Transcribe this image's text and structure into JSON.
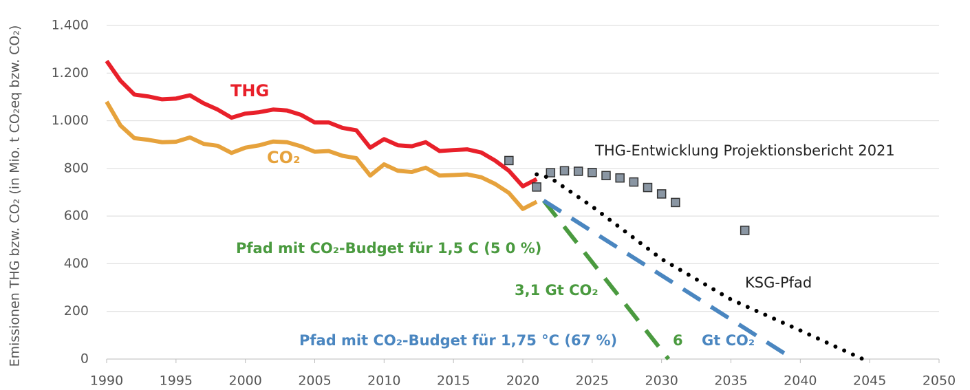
{
  "chart_data": {
    "type": "line",
    "ylabel": "Emissionen THG bzw. CO₂ (in Mio. t CO₂eq bzw. CO₂)",
    "xlim": [
      1990,
      2050
    ],
    "xticks": [
      1990,
      1995,
      2000,
      2005,
      2010,
      2015,
      2020,
      2025,
      2030,
      2035,
      2040,
      2045,
      2050
    ],
    "ylim": [
      0,
      1400
    ],
    "yticks": [
      0,
      200,
      400,
      600,
      800,
      {
        "value": 1000,
        "label": "1.000"
      },
      {
        "value": 1200,
        "label": "1.200"
      },
      {
        "value": 1400,
        "label": "1.400"
      }
    ],
    "grid": true,
    "series": [
      {
        "name": "THG",
        "color": "#e8202a",
        "style": "solid",
        "x": [
          1990,
          1991,
          1992,
          1993,
          1994,
          1995,
          1996,
          1997,
          1998,
          1999,
          2000,
          2001,
          2002,
          2003,
          2004,
          2005,
          2006,
          2007,
          2008,
          2009,
          2010,
          2011,
          2012,
          2013,
          2014,
          2015,
          2016,
          2017,
          2018,
          2019,
          2020,
          2021
        ],
        "values": [
          1251,
          1168,
          1110,
          1102,
          1090,
          1093,
          1107,
          1073,
          1047,
          1013,
          1030,
          1036,
          1047,
          1043,
          1025,
          993,
          993,
          970,
          960,
          887,
          923,
          897,
          893,
          910,
          873,
          877,
          880,
          867,
          833,
          790,
          725,
          755
        ]
      },
      {
        "name": "CO₂",
        "color": "#e6a23c",
        "style": "solid",
        "x": [
          1990,
          1991,
          1992,
          1993,
          1994,
          1995,
          1996,
          1997,
          1998,
          1999,
          2000,
          2001,
          2002,
          2003,
          2004,
          2005,
          2006,
          2007,
          2008,
          2009,
          2010,
          2011,
          2012,
          2013,
          2014,
          2015,
          2016,
          2017,
          2018,
          2019,
          2020,
          2021
        ],
        "values": [
          1080,
          980,
          927,
          920,
          910,
          912,
          930,
          903,
          895,
          865,
          887,
          897,
          913,
          910,
          893,
          870,
          873,
          853,
          843,
          770,
          817,
          790,
          785,
          803,
          770,
          772,
          775,
          763,
          735,
          697,
          630,
          660
        ]
      },
      {
        "name": "THG-Entwicklung Projektionsbericht 2021",
        "color": "#8a96a3",
        "style": "markers",
        "x": [
          2019,
          2021,
          2022,
          2023,
          2024,
          2025,
          2026,
          2027,
          2028,
          2029,
          2030,
          2031,
          2036
        ],
        "values": [
          833,
          722,
          782,
          790,
          788,
          783,
          770,
          760,
          743,
          720,
          693,
          657,
          540
        ]
      },
      {
        "name": "KSG-Pfad",
        "color": "#000000",
        "style": "dotted",
        "x": [
          2021,
          2022,
          2025,
          2030,
          2035,
          2040,
          2044.5
        ],
        "values": [
          775,
          760,
          640,
          420,
          250,
          120,
          0
        ]
      },
      {
        "name": "Pfad mit CO₂-Budget für 1,5  C (5 0 %)",
        "color": "#4a9a3f",
        "style": "dashed",
        "x": [
          2021.5,
          2030.5
        ],
        "values": [
          665,
          0
        ]
      },
      {
        "name": "Pfad mit CO₂-Budget für 1,75 °C (67 %)",
        "color": "#4a86c0",
        "style": "dashed",
        "x": [
          2021.5,
          2039.5
        ],
        "values": [
          665,
          0
        ]
      }
    ],
    "annotations": [
      "3,1 Gt CO₂",
      "6",
      "Gt CO₂"
    ]
  }
}
